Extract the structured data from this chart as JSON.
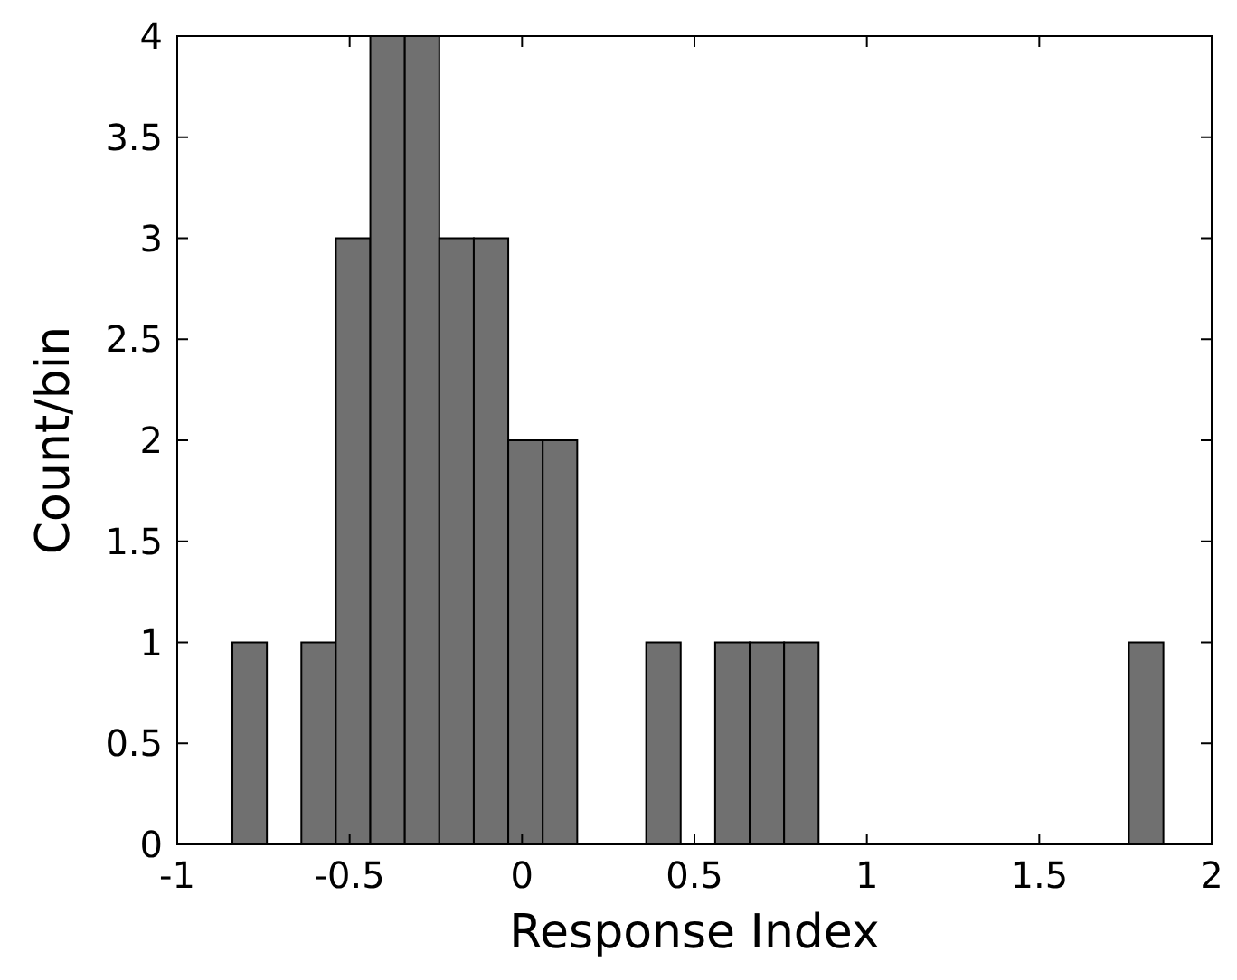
{
  "chart_data": {
    "type": "histogram",
    "xlabel": "Response Index",
    "ylabel": "Count/bin",
    "bins": [
      -0.84,
      -0.74,
      -0.64,
      -0.54,
      -0.44,
      -0.34,
      -0.24,
      -0.14,
      -0.04,
      0.06,
      0.16,
      0.26,
      0.36,
      0.46,
      0.56,
      0.66,
      0.76,
      0.86,
      0.96,
      1.06,
      1.16,
      1.26,
      1.36,
      1.46,
      1.56,
      1.66,
      1.76,
      1.86
    ],
    "values": [
      1,
      0,
      1,
      3,
      4,
      4,
      3,
      3,
      2,
      2,
      0,
      0,
      1,
      0,
      1,
      1,
      1,
      0,
      0,
      0,
      0,
      0,
      0,
      0,
      0,
      0,
      1
    ],
    "color": "#707070",
    "xlim": [
      -1,
      2
    ],
    "xticks": [
      -1,
      -0.5,
      0,
      0.5,
      1,
      1.5,
      2
    ],
    "ylim": [
      0,
      4
    ],
    "yticks": [
      0,
      0.5,
      1,
      1.5,
      2,
      2.5,
      3,
      3.5,
      4
    ],
    "grid": false
  }
}
